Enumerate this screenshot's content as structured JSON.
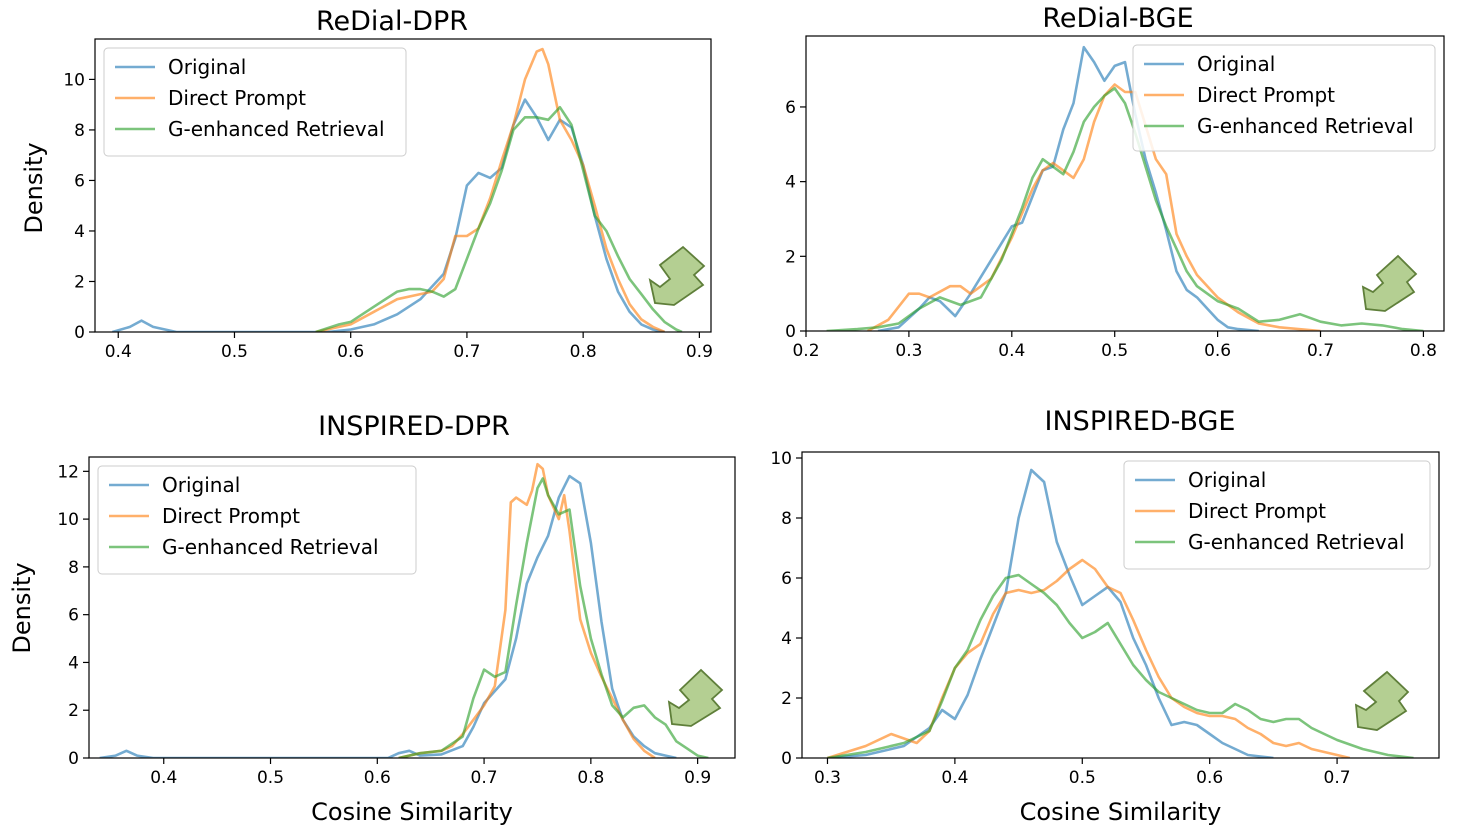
{
  "colors": {
    "Original": "#1f77b4",
    "Direct Prompt": "#ff7f0e",
    "G-enhanced Retrieval": "#2ca02c"
  },
  "chart_data": [
    {
      "type": "line",
      "title": "ReDial-DPR",
      "xlabel": "",
      "ylabel": "Density",
      "xlim": [
        0.38,
        0.91
      ],
      "ylim": [
        0,
        11.6
      ],
      "xticks": [
        0.4,
        0.5,
        0.6,
        0.7,
        0.8,
        0.9
      ],
      "xtick_labels": [
        "0.4",
        "0.5",
        "0.6",
        "0.7",
        "0.8",
        "0.9"
      ],
      "yticks": [
        0,
        2,
        4,
        6,
        8,
        10
      ],
      "ytick_labels": [
        "0",
        "2",
        "4",
        "6",
        "8",
        "10"
      ],
      "legend": "upper-left",
      "annotation": "green arrow pointing at right tail",
      "series": [
        {
          "name": "Original",
          "x": [
            0.395,
            0.41,
            0.42,
            0.43,
            0.45,
            0.5,
            0.55,
            0.58,
            0.6,
            0.62,
            0.64,
            0.66,
            0.68,
            0.69,
            0.7,
            0.71,
            0.72,
            0.73,
            0.74,
            0.75,
            0.76,
            0.77,
            0.78,
            0.79,
            0.8,
            0.81,
            0.82,
            0.83,
            0.84,
            0.85,
            0.86,
            0.87
          ],
          "y": [
            0,
            0.2,
            0.45,
            0.2,
            0,
            0,
            0,
            0,
            0.1,
            0.3,
            0.7,
            1.3,
            2.3,
            3.7,
            5.8,
            6.3,
            6.1,
            6.5,
            8.2,
            9.2,
            8.5,
            7.6,
            8.4,
            8.1,
            6.6,
            4.6,
            2.9,
            1.6,
            0.8,
            0.3,
            0.1,
            0
          ]
        },
        {
          "name": "Direct Prompt",
          "x": [
            0.57,
            0.59,
            0.6,
            0.62,
            0.64,
            0.66,
            0.67,
            0.68,
            0.69,
            0.7,
            0.71,
            0.72,
            0.73,
            0.74,
            0.75,
            0.76,
            0.765,
            0.77,
            0.78,
            0.79,
            0.8,
            0.81,
            0.82,
            0.83,
            0.84,
            0.85,
            0.86,
            0.87
          ],
          "y": [
            0,
            0.2,
            0.3,
            0.8,
            1.3,
            1.5,
            1.6,
            2.1,
            3.8,
            3.8,
            4.1,
            5.3,
            6.8,
            8.2,
            10.0,
            11.1,
            11.2,
            10.6,
            8.4,
            7.6,
            6.6,
            5.0,
            3.3,
            2.1,
            1.1,
            0.5,
            0.2,
            0
          ]
        },
        {
          "name": "G-enhanced Retrieval",
          "x": [
            0.57,
            0.59,
            0.6,
            0.62,
            0.64,
            0.65,
            0.66,
            0.67,
            0.68,
            0.69,
            0.7,
            0.71,
            0.72,
            0.73,
            0.74,
            0.75,
            0.76,
            0.77,
            0.78,
            0.79,
            0.8,
            0.81,
            0.82,
            0.83,
            0.84,
            0.85,
            0.86,
            0.87,
            0.88,
            0.885
          ],
          "y": [
            0,
            0.3,
            0.4,
            1.0,
            1.6,
            1.7,
            1.7,
            1.6,
            1.4,
            1.7,
            2.9,
            4.1,
            5.1,
            6.4,
            8.0,
            8.5,
            8.5,
            8.4,
            8.9,
            8.2,
            6.4,
            4.6,
            4.0,
            3.0,
            2.1,
            1.5,
            0.9,
            0.4,
            0.1,
            0
          ]
        }
      ]
    },
    {
      "type": "line",
      "title": "ReDial-BGE",
      "xlabel": "",
      "ylabel": "",
      "xlim": [
        0.2,
        0.82
      ],
      "ylim": [
        0,
        7.9
      ],
      "xticks": [
        0.2,
        0.3,
        0.4,
        0.5,
        0.6,
        0.7,
        0.8
      ],
      "xtick_labels": [
        "0.2",
        "0.3",
        "0.4",
        "0.5",
        "0.6",
        "0.7",
        "0.8"
      ],
      "yticks": [
        0,
        2,
        4,
        6
      ],
      "ytick_labels": [
        "0",
        "2",
        "4",
        "6"
      ],
      "legend": "upper-right",
      "annotation": "green arrow pointing at right tail",
      "series": [
        {
          "name": "Original",
          "x": [
            0.27,
            0.29,
            0.31,
            0.32,
            0.33,
            0.345,
            0.36,
            0.38,
            0.4,
            0.41,
            0.42,
            0.43,
            0.44,
            0.45,
            0.46,
            0.47,
            0.48,
            0.49,
            0.5,
            0.51,
            0.52,
            0.53,
            0.54,
            0.55,
            0.56,
            0.57,
            0.58,
            0.59,
            0.6,
            0.61,
            0.62,
            0.64
          ],
          "y": [
            0,
            0.1,
            0.6,
            0.9,
            0.8,
            0.4,
            1.0,
            1.9,
            2.8,
            2.9,
            3.6,
            4.3,
            4.4,
            5.4,
            6.1,
            7.6,
            7.2,
            6.7,
            7.1,
            7.2,
            5.8,
            4.6,
            3.7,
            2.7,
            1.6,
            1.1,
            0.9,
            0.6,
            0.3,
            0.1,
            0.05,
            0
          ]
        },
        {
          "name": "Direct Prompt",
          "x": [
            0.26,
            0.28,
            0.3,
            0.31,
            0.32,
            0.34,
            0.35,
            0.36,
            0.38,
            0.4,
            0.42,
            0.43,
            0.44,
            0.45,
            0.46,
            0.47,
            0.48,
            0.49,
            0.5,
            0.51,
            0.52,
            0.53,
            0.54,
            0.55,
            0.56,
            0.57,
            0.58,
            0.6,
            0.62,
            0.64,
            0.66,
            0.7
          ],
          "y": [
            0,
            0.3,
            1.0,
            1.0,
            0.9,
            1.2,
            1.2,
            1.0,
            1.4,
            2.5,
            3.8,
            4.3,
            4.5,
            4.3,
            4.1,
            4.6,
            5.6,
            6.3,
            6.6,
            6.4,
            6.4,
            5.5,
            4.6,
            4.2,
            2.6,
            2.0,
            1.5,
            0.9,
            0.5,
            0.2,
            0.1,
            0
          ]
        },
        {
          "name": "G-enhanced Retrieval",
          "x": [
            0.22,
            0.25,
            0.27,
            0.29,
            0.31,
            0.33,
            0.35,
            0.37,
            0.39,
            0.41,
            0.42,
            0.43,
            0.44,
            0.45,
            0.46,
            0.47,
            0.48,
            0.49,
            0.5,
            0.51,
            0.52,
            0.53,
            0.54,
            0.55,
            0.56,
            0.57,
            0.58,
            0.6,
            0.62,
            0.64,
            0.66,
            0.68,
            0.7,
            0.72,
            0.74,
            0.76,
            0.78,
            0.8
          ],
          "y": [
            0,
            0.05,
            0.1,
            0.2,
            0.6,
            0.9,
            0.7,
            0.9,
            1.9,
            3.3,
            4.1,
            4.6,
            4.4,
            4.2,
            4.8,
            5.6,
            6.0,
            6.3,
            6.5,
            6.1,
            5.3,
            4.4,
            3.5,
            2.8,
            2.2,
            1.6,
            1.2,
            0.8,
            0.6,
            0.25,
            0.3,
            0.45,
            0.25,
            0.15,
            0.2,
            0.15,
            0.05,
            0
          ]
        }
      ]
    },
    {
      "type": "line",
      "title": "INSPIRED-DPR",
      "xlabel": "Cosine Similarity",
      "ylabel": "Density",
      "xlim": [
        0.33,
        0.935
      ],
      "ylim": [
        0,
        12.6
      ],
      "xticks": [
        0.4,
        0.5,
        0.6,
        0.7,
        0.8,
        0.9
      ],
      "xtick_labels": [
        "0.4",
        "0.5",
        "0.6",
        "0.7",
        "0.8",
        "0.9"
      ],
      "yticks": [
        0,
        2,
        4,
        6,
        8,
        10,
        12
      ],
      "ytick_labels": [
        "0",
        "2",
        "4",
        "6",
        "8",
        "10",
        "12"
      ],
      "legend": "upper-left",
      "annotation": "green arrow pointing at right tail",
      "series": [
        {
          "name": "Original",
          "x": [
            0.34,
            0.355,
            0.365,
            0.375,
            0.39,
            0.45,
            0.55,
            0.61,
            0.62,
            0.63,
            0.64,
            0.66,
            0.68,
            0.69,
            0.7,
            0.71,
            0.72,
            0.73,
            0.74,
            0.75,
            0.76,
            0.77,
            0.78,
            0.79,
            0.8,
            0.81,
            0.82,
            0.83,
            0.84,
            0.85,
            0.86,
            0.87,
            0.88
          ],
          "y": [
            0,
            0.1,
            0.3,
            0.1,
            0,
            0,
            0,
            0,
            0.2,
            0.3,
            0.1,
            0.15,
            0.5,
            1.3,
            2.3,
            2.8,
            3.3,
            5.0,
            7.3,
            8.4,
            9.3,
            10.9,
            11.8,
            11.5,
            9.0,
            5.7,
            2.9,
            1.6,
            0.9,
            0.5,
            0.2,
            0.1,
            0
          ]
        },
        {
          "name": "Direct Prompt",
          "x": [
            0.62,
            0.64,
            0.66,
            0.67,
            0.68,
            0.69,
            0.7,
            0.71,
            0.72,
            0.725,
            0.73,
            0.74,
            0.745,
            0.75,
            0.755,
            0.76,
            0.77,
            0.775,
            0.78,
            0.79,
            0.8,
            0.81,
            0.82,
            0.83,
            0.84,
            0.85,
            0.86
          ],
          "y": [
            0,
            0.2,
            0.3,
            0.5,
            1.0,
            1.6,
            2.2,
            3.0,
            6.2,
            10.7,
            10.9,
            10.6,
            11.2,
            12.3,
            12.1,
            11.0,
            10.0,
            11.0,
            9.5,
            5.8,
            4.4,
            3.4,
            2.5,
            1.6,
            0.8,
            0.3,
            0
          ]
        },
        {
          "name": "G-enhanced Retrieval",
          "x": [
            0.62,
            0.64,
            0.66,
            0.68,
            0.69,
            0.7,
            0.71,
            0.72,
            0.73,
            0.74,
            0.75,
            0.755,
            0.76,
            0.77,
            0.78,
            0.79,
            0.8,
            0.81,
            0.82,
            0.83,
            0.84,
            0.85,
            0.86,
            0.87,
            0.88,
            0.89,
            0.9,
            0.91
          ],
          "y": [
            0,
            0.2,
            0.3,
            0.9,
            2.5,
            3.7,
            3.4,
            3.6,
            6.4,
            9.0,
            11.3,
            11.7,
            11.0,
            10.2,
            10.4,
            7.2,
            5.0,
            3.5,
            2.2,
            1.7,
            2.1,
            2.2,
            1.7,
            1.4,
            0.7,
            0.4,
            0.1,
            0
          ]
        }
      ]
    },
    {
      "type": "line",
      "title": "INSPIRED-BGE",
      "xlabel": "Cosine Similarity",
      "ylabel": "",
      "xlim": [
        0.28,
        0.78
      ],
      "ylim": [
        0,
        10.2
      ],
      "xticks": [
        0.3,
        0.4,
        0.5,
        0.6,
        0.7
      ],
      "xtick_labels": [
        "0.3",
        "0.4",
        "0.5",
        "0.6",
        "0.7"
      ],
      "yticks": [
        0,
        2,
        4,
        6,
        8,
        10
      ],
      "ytick_labels": [
        "0",
        "2",
        "4",
        "6",
        "8",
        "10"
      ],
      "legend": "upper-right",
      "annotation": "green arrow pointing at right tail",
      "series": [
        {
          "name": "Original",
          "x": [
            0.3,
            0.33,
            0.36,
            0.38,
            0.39,
            0.4,
            0.41,
            0.42,
            0.43,
            0.44,
            0.45,
            0.46,
            0.47,
            0.48,
            0.49,
            0.5,
            0.51,
            0.52,
            0.53,
            0.54,
            0.55,
            0.56,
            0.57,
            0.58,
            0.59,
            0.6,
            0.61,
            0.62,
            0.63,
            0.64,
            0.65
          ],
          "y": [
            0,
            0.1,
            0.4,
            1.0,
            1.6,
            1.3,
            2.1,
            3.3,
            4.4,
            5.5,
            8.0,
            9.6,
            9.2,
            7.2,
            6.1,
            5.1,
            5.4,
            5.7,
            5.2,
            4.0,
            3.1,
            2.0,
            1.1,
            1.2,
            1.1,
            0.8,
            0.5,
            0.3,
            0.1,
            0.05,
            0
          ]
        },
        {
          "name": "Direct Prompt",
          "x": [
            0.3,
            0.33,
            0.35,
            0.37,
            0.38,
            0.39,
            0.4,
            0.41,
            0.42,
            0.43,
            0.44,
            0.45,
            0.46,
            0.47,
            0.48,
            0.49,
            0.5,
            0.51,
            0.52,
            0.53,
            0.54,
            0.55,
            0.56,
            0.57,
            0.58,
            0.59,
            0.6,
            0.61,
            0.62,
            0.63,
            0.64,
            0.65,
            0.66,
            0.67,
            0.68,
            0.69,
            0.7,
            0.71
          ],
          "y": [
            0,
            0.4,
            0.8,
            0.5,
            0.9,
            2.0,
            3.0,
            3.5,
            3.8,
            4.8,
            5.5,
            5.6,
            5.5,
            5.6,
            5.9,
            6.3,
            6.6,
            6.3,
            5.7,
            5.5,
            4.6,
            3.6,
            2.7,
            2.0,
            1.7,
            1.5,
            1.4,
            1.4,
            1.3,
            1.0,
            0.8,
            0.5,
            0.4,
            0.5,
            0.3,
            0.2,
            0.1,
            0
          ]
        },
        {
          "name": "G-enhanced Retrieval",
          "x": [
            0.3,
            0.33,
            0.36,
            0.38,
            0.39,
            0.4,
            0.41,
            0.42,
            0.43,
            0.44,
            0.45,
            0.46,
            0.47,
            0.48,
            0.49,
            0.5,
            0.51,
            0.52,
            0.53,
            0.54,
            0.55,
            0.56,
            0.57,
            0.58,
            0.59,
            0.6,
            0.61,
            0.62,
            0.63,
            0.64,
            0.65,
            0.66,
            0.67,
            0.68,
            0.69,
            0.7,
            0.72,
            0.74,
            0.76
          ],
          "y": [
            0,
            0.2,
            0.5,
            0.9,
            1.9,
            3.0,
            3.6,
            4.6,
            5.4,
            6.0,
            6.1,
            5.8,
            5.5,
            5.1,
            4.5,
            4.0,
            4.2,
            4.5,
            3.8,
            3.1,
            2.6,
            2.2,
            2.0,
            1.8,
            1.6,
            1.5,
            1.5,
            1.8,
            1.6,
            1.3,
            1.2,
            1.3,
            1.3,
            1.0,
            0.8,
            0.6,
            0.3,
            0.1,
            0
          ]
        }
      ]
    }
  ]
}
